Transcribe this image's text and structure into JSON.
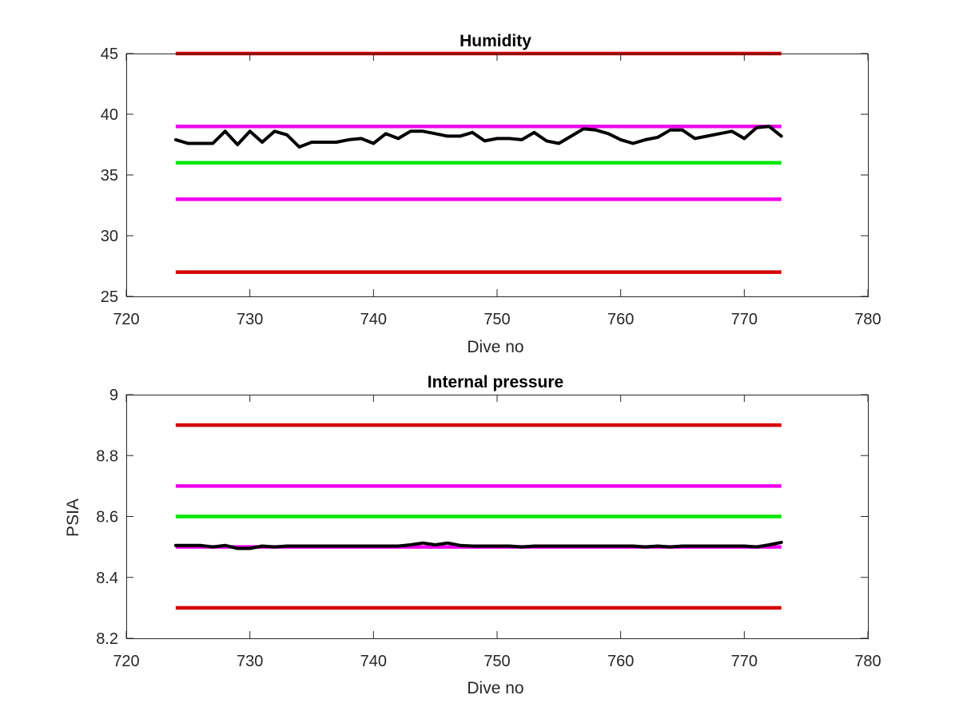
{
  "chart_data": [
    {
      "type": "line",
      "title": "Humidity",
      "xlabel": "Dive no",
      "ylabel": "",
      "xlim": [
        720,
        780
      ],
      "ylim": [
        25,
        45
      ],
      "xticks": [
        720,
        730,
        740,
        750,
        760,
        770,
        780
      ],
      "yticks": [
        25,
        30,
        35,
        40,
        45
      ],
      "xtick_labels": [
        "720",
        "730",
        "740",
        "750",
        "760",
        "770",
        "780"
      ],
      "ytick_labels": [
        "25",
        "30",
        "35",
        "40",
        "45"
      ],
      "grid": false,
      "reference_lines": [
        {
          "y": 45,
          "x_range": [
            724,
            773
          ],
          "color": "#d40000"
        },
        {
          "y": 39,
          "x_range": [
            724,
            773
          ],
          "color": "#ee00ee"
        },
        {
          "y": 36,
          "x_range": [
            724,
            773
          ],
          "color": "#00e600"
        },
        {
          "y": 33,
          "x_range": [
            724,
            773
          ],
          "color": "#ee00ee"
        },
        {
          "y": 27,
          "x_range": [
            724,
            773
          ],
          "color": "#d40000"
        }
      ],
      "series": [
        {
          "color": "#000000",
          "x": [
            724,
            725,
            726,
            727,
            728,
            729,
            730,
            731,
            732,
            733,
            734,
            735,
            736,
            737,
            738,
            739,
            740,
            741,
            742,
            743,
            744,
            745,
            746,
            747,
            748,
            749,
            750,
            751,
            752,
            753,
            754,
            755,
            756,
            757,
            758,
            759,
            760,
            761,
            762,
            763,
            764,
            765,
            766,
            767,
            768,
            769,
            770,
            771,
            772,
            773
          ],
          "y": [
            37.9,
            37.6,
            37.6,
            37.6,
            38.6,
            37.5,
            38.6,
            37.7,
            38.6,
            38.3,
            37.3,
            37.7,
            37.7,
            37.7,
            37.9,
            38.0,
            37.6,
            38.4,
            38.0,
            38.6,
            38.6,
            38.4,
            38.2,
            38.2,
            38.5,
            37.8,
            38.0,
            38.0,
            37.9,
            38.5,
            37.8,
            37.6,
            38.2,
            38.8,
            38.7,
            38.4,
            37.9,
            37.6,
            37.9,
            38.1,
            38.7,
            38.7,
            38.0,
            38.2,
            38.4,
            38.6,
            38.0,
            38.9,
            39.0,
            38.2
          ]
        }
      ]
    },
    {
      "type": "line",
      "title": "Internal pressure",
      "xlabel": "Dive no",
      "ylabel": "PSIA",
      "xlim": [
        720,
        780
      ],
      "ylim": [
        8.2,
        9.0
      ],
      "xticks": [
        720,
        730,
        740,
        750,
        760,
        770,
        780
      ],
      "yticks": [
        8.2,
        8.4,
        8.6,
        8.8,
        9.0
      ],
      "xtick_labels": [
        "720",
        "730",
        "740",
        "750",
        "760",
        "770",
        "780"
      ],
      "ytick_labels": [
        "8.2",
        "8.4",
        "8.6",
        "8.8",
        "9"
      ],
      "grid": false,
      "reference_lines": [
        {
          "y": 8.9,
          "x_range": [
            724,
            773
          ],
          "color": "#d40000"
        },
        {
          "y": 8.7,
          "x_range": [
            724,
            773
          ],
          "color": "#ee00ee"
        },
        {
          "y": 8.6,
          "x_range": [
            724,
            773
          ],
          "color": "#00e600"
        },
        {
          "y": 8.5,
          "x_range": [
            724,
            773
          ],
          "color": "#ee00ee"
        },
        {
          "y": 8.3,
          "x_range": [
            724,
            773
          ],
          "color": "#d40000"
        }
      ],
      "series": [
        {
          "color": "#000000",
          "x": [
            724,
            725,
            726,
            727,
            728,
            729,
            730,
            731,
            732,
            733,
            734,
            735,
            736,
            737,
            738,
            739,
            740,
            741,
            742,
            743,
            744,
            745,
            746,
            747,
            748,
            749,
            750,
            751,
            752,
            753,
            754,
            755,
            756,
            757,
            758,
            759,
            760,
            761,
            762,
            763,
            764,
            765,
            766,
            767,
            768,
            769,
            770,
            771,
            772,
            773
          ],
          "y": [
            8.505,
            8.505,
            8.505,
            8.5,
            8.505,
            8.495,
            8.495,
            8.503,
            8.5,
            8.503,
            8.503,
            8.503,
            8.503,
            8.503,
            8.503,
            8.503,
            8.503,
            8.503,
            8.503,
            8.507,
            8.513,
            8.507,
            8.513,
            8.505,
            8.503,
            8.503,
            8.503,
            8.503,
            8.5,
            8.503,
            8.503,
            8.503,
            8.503,
            8.503,
            8.503,
            8.503,
            8.503,
            8.503,
            8.5,
            8.503,
            8.5,
            8.503,
            8.503,
            8.503,
            8.503,
            8.503,
            8.503,
            8.5,
            8.507,
            8.515
          ]
        }
      ]
    }
  ]
}
